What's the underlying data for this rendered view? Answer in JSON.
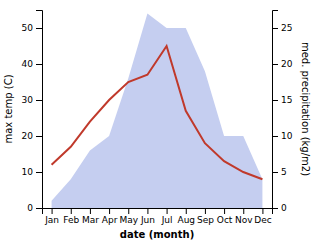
{
  "chart_data": {
    "type": "line",
    "categories": [
      "Jan",
      "Feb",
      "Mar",
      "Apr",
      "May",
      "Jun",
      "Jul",
      "Aug",
      "Sep",
      "Oct",
      "Nov",
      "Dec"
    ],
    "series": [
      {
        "type": "area",
        "axis": "y2",
        "color": "#c5cef0",
        "values": [
          1,
          4,
          8,
          10,
          18,
          27,
          25,
          25,
          19,
          10,
          10,
          4
        ]
      },
      {
        "type": "line",
        "color": "#c0392b",
        "values": [
          12,
          17,
          24,
          30,
          35,
          37,
          45,
          27,
          18,
          13,
          10,
          8
        ]
      }
    ],
    "x_label": "date (month)",
    "y_label": "max temp (C)",
    "y2_label": "med. precipitation (kg/m2)",
    "ylim": [
      0,
      55
    ],
    "yticks": [
      0,
      10,
      20,
      30,
      40,
      50
    ],
    "y2lim": [
      0,
      27.5
    ],
    "y2ticks": [
      0,
      5,
      10,
      15,
      20,
      25
    ],
    "grid": false
  }
}
